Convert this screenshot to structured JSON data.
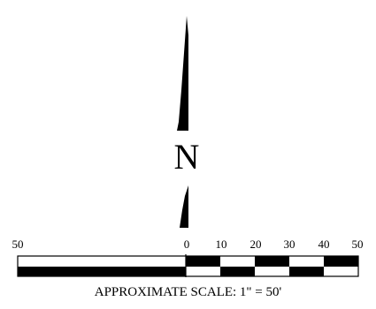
{
  "north_arrow": {
    "letter": "N",
    "icon": "north-arrow-icon"
  },
  "scale_bar": {
    "tick_labels": [
      "50",
      "0",
      "10",
      "20",
      "30",
      "40",
      "50"
    ],
    "caption": "APPROXIMATE SCALE: 1\" = 50'",
    "colors": {
      "fill": "#000000",
      "background": "#ffffff"
    }
  }
}
